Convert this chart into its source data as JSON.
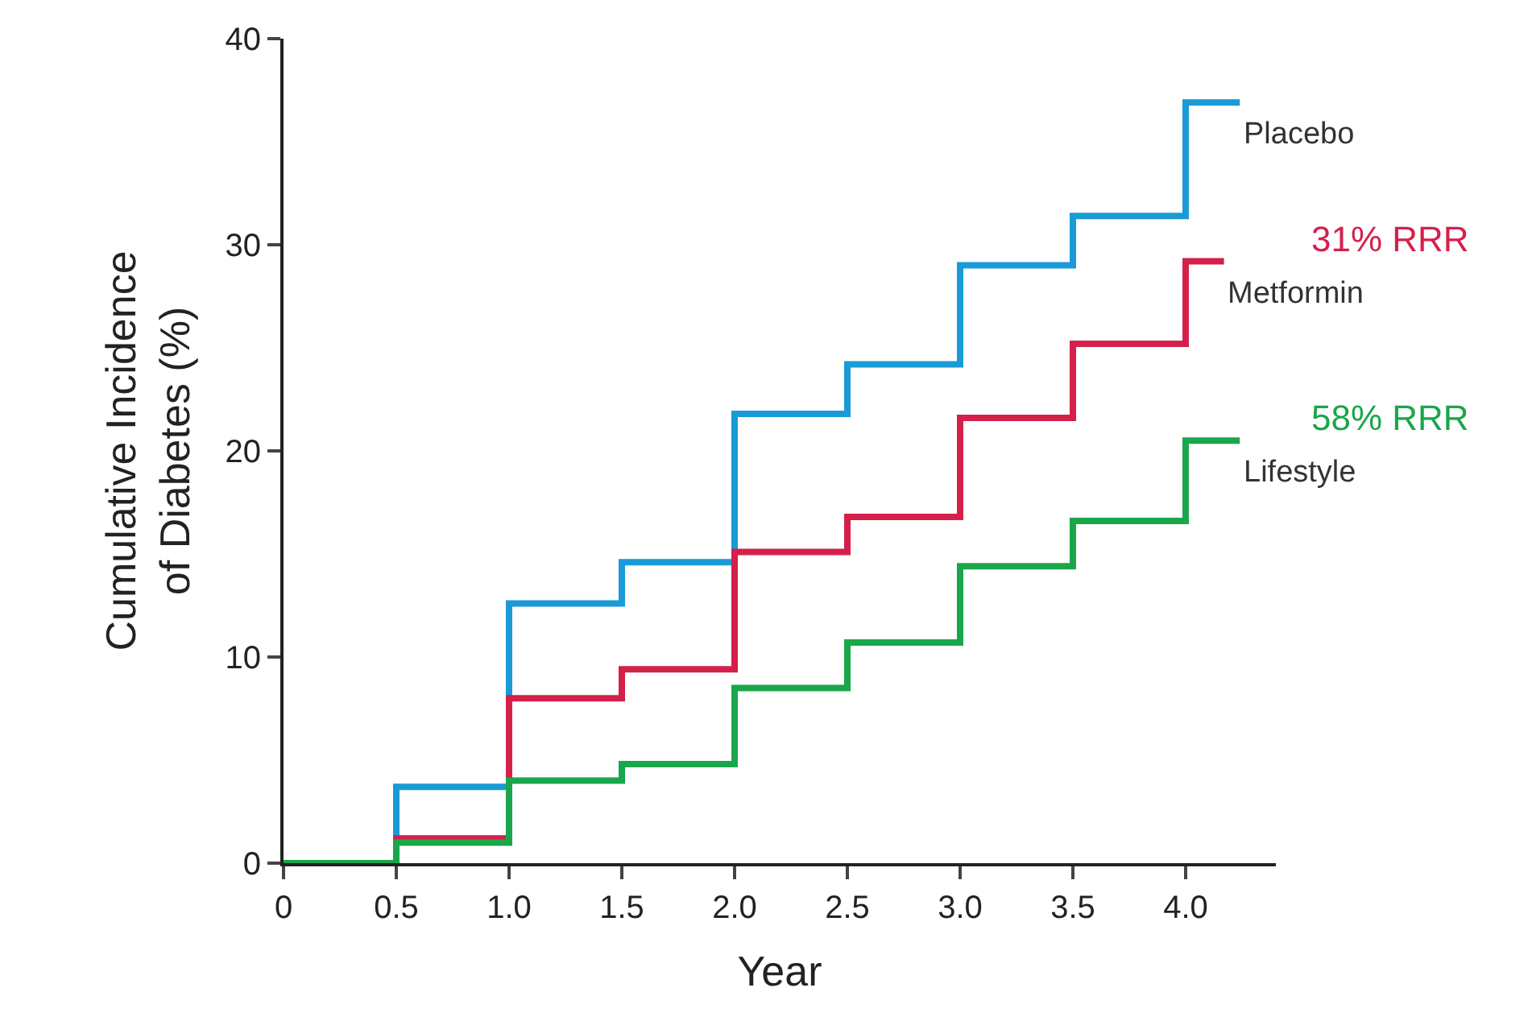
{
  "chart_data": {
    "type": "step",
    "xlabel": "Year",
    "ylabel": "Cumulative Incidence\nof Diabetes (%)",
    "xlim": [
      0,
      4.4
    ],
    "ylim": [
      0,
      40
    ],
    "xticks": [
      0,
      0.5,
      {
        "value": 1,
        "label": "1.0"
      },
      1.5,
      {
        "value": 2,
        "label": "2.0"
      },
      2.5,
      {
        "value": 3,
        "label": "3.0"
      },
      3.5,
      {
        "value": 4,
        "label": "4.0"
      }
    ],
    "yticks": [
      0,
      10,
      20,
      30,
      40
    ],
    "grid": false,
    "legend": false,
    "marker": "none",
    "line_style": "solid",
    "series": [
      {
        "name": "Placebo",
        "color": "#1a9ad6",
        "x": [
          0,
          0.5,
          1,
          1.5,
          2,
          2.5,
          3,
          3.5,
          4,
          4.24
        ],
        "values": [
          0,
          3.7,
          12.6,
          14.6,
          21.8,
          24.2,
          29,
          31.4,
          36.9,
          36.9
        ]
      },
      {
        "name": "Metformin",
        "color": "#d4204a",
        "x": [
          0,
          0.5,
          1,
          1.5,
          2,
          2.5,
          3,
          3.5,
          4,
          4.17
        ],
        "values": [
          0,
          1.2,
          8,
          9.4,
          15.1,
          16.8,
          21.6,
          25.2,
          29.2,
          29.2
        ]
      },
      {
        "name": "Lifestyle",
        "color": "#1aa64a",
        "x": [
          0,
          0.5,
          1,
          1.5,
          2,
          2.5,
          3,
          3.5,
          4,
          4.24
        ],
        "values": [
          0,
          1,
          4,
          4.8,
          8.5,
          10.7,
          14.4,
          16.6,
          20.5,
          20.5
        ]
      }
    ],
    "annotations": [
      "31% RRR",
      "58% RRR"
    ]
  }
}
